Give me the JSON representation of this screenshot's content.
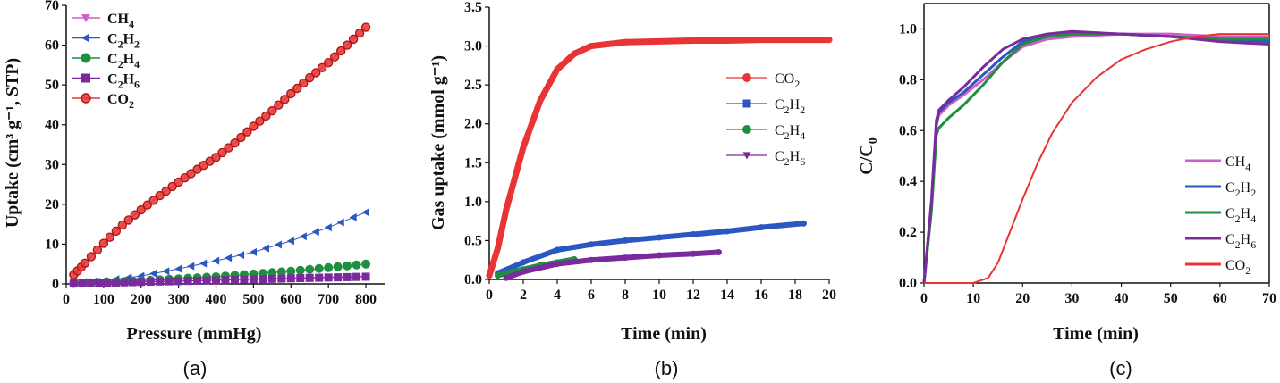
{
  "figure": {
    "colors": {
      "CH4": "#d15ec8",
      "C2H2": "#2b57c2",
      "C2H4": "#1f8f3f",
      "C2H6": "#7a2a9c",
      "CO2": "#e83434",
      "axis": "#111111"
    }
  },
  "chart_data": [
    {
      "panel_label": "(a)",
      "type": "scatter",
      "xlabel": "Pressure (mmHg)",
      "ylabel": "Uptake (cm³ g⁻¹, STP)",
      "xlim": [
        0,
        850
      ],
      "ylim": [
        0,
        70
      ],
      "xticks": [
        "0",
        "100",
        "200",
        "300",
        "400",
        "500",
        "600",
        "700",
        "800"
      ],
      "yticks": [
        "0",
        "10",
        "20",
        "30",
        "40",
        "50",
        "60",
        "70"
      ],
      "legend_placement": "top-left",
      "series": [
        {
          "name": "CH4",
          "label_parts": [
            "CH",
            "4",
            ""
          ],
          "marker": "triangle-down",
          "x": [
            20,
            200,
            400,
            600,
            800
          ],
          "y": [
            0.1,
            0.5,
            1.0,
            1.5,
            2.0
          ]
        },
        {
          "name": "C2H2",
          "label_parts": [
            "C",
            "2",
            "H",
            "2"
          ],
          "marker": "triangle-left",
          "x": [
            20,
            100,
            200,
            300,
            400,
            500,
            600,
            700,
            800
          ],
          "y": [
            0.3,
            0.8,
            2.0,
            3.8,
            5.8,
            8.0,
            10.8,
            14.2,
            18.0
          ]
        },
        {
          "name": "C2H4",
          "label_parts": [
            "C",
            "2",
            "H",
            "4"
          ],
          "marker": "circle",
          "x": [
            20,
            200,
            400,
            600,
            800
          ],
          "y": [
            0.1,
            0.8,
            1.8,
            3.2,
            5.0
          ]
        },
        {
          "name": "C2H6",
          "label_parts": [
            "C",
            "2",
            "H",
            "6"
          ],
          "marker": "square",
          "x": [
            20,
            200,
            400,
            600,
            800
          ],
          "y": [
            0.1,
            0.5,
            0.9,
            1.4,
            1.8
          ]
        },
        {
          "name": "CO2",
          "label_parts": [
            "CO",
            "2",
            ""
          ],
          "marker": "circle-open",
          "x": [
            20,
            50,
            100,
            150,
            200,
            250,
            300,
            350,
            400,
            450,
            500,
            550,
            600,
            650,
            700,
            750,
            800
          ],
          "y": [
            2.3,
            5.2,
            10.2,
            14.8,
            18.6,
            22.2,
            25.6,
            28.8,
            31.8,
            35.4,
            39.6,
            43.5,
            47.8,
            51.8,
            55.6,
            60.0,
            64.5
          ]
        }
      ]
    },
    {
      "panel_label": "(b)",
      "type": "scatter",
      "xlabel": "Time (min)",
      "ylabel": "Gas uptake (mmol g⁻¹)",
      "xlim": [
        0,
        20
      ],
      "ylim": [
        0,
        3.5
      ],
      "xticks": [
        "0",
        "2",
        "4",
        "6",
        "8",
        "10",
        "12",
        "14",
        "16",
        "18",
        "20"
      ],
      "yticks": [
        "0.0",
        "0.5",
        "1.0",
        "1.5",
        "2.0",
        "2.5",
        "3.0",
        "3.5"
      ],
      "legend_placement": "right",
      "series": [
        {
          "name": "CO2",
          "label_parts": [
            "CO",
            "2",
            ""
          ],
          "x": [
            0,
            0.5,
            1,
            2,
            3,
            4,
            5,
            6,
            8,
            10,
            12,
            14,
            16,
            18,
            20
          ],
          "y": [
            0.05,
            0.4,
            0.9,
            1.7,
            2.3,
            2.7,
            2.9,
            3.0,
            3.05,
            3.06,
            3.07,
            3.07,
            3.08,
            3.08,
            3.08
          ]
        },
        {
          "name": "C2H2",
          "label_parts": [
            "C",
            "2",
            "H",
            "2"
          ],
          "x": [
            0.5,
            2,
            4,
            6,
            8,
            10,
            12,
            14,
            16,
            18.5
          ],
          "y": [
            0.08,
            0.22,
            0.38,
            0.45,
            0.5,
            0.54,
            0.58,
            0.62,
            0.67,
            0.72
          ]
        },
        {
          "name": "C2H4",
          "label_parts": [
            "C",
            "2",
            "H",
            "4"
          ],
          "x": [
            0.5,
            1,
            2,
            3,
            4,
            5
          ],
          "y": [
            0.05,
            0.08,
            0.13,
            0.18,
            0.22,
            0.26
          ]
        },
        {
          "name": "C2H6",
          "label_parts": [
            "C",
            "2",
            "H",
            "6"
          ],
          "x": [
            1,
            2,
            4,
            6,
            8,
            10,
            12,
            13.5
          ],
          "y": [
            0.02,
            0.1,
            0.2,
            0.25,
            0.28,
            0.31,
            0.33,
            0.35
          ]
        }
      ]
    },
    {
      "panel_label": "(c)",
      "type": "line",
      "xlabel": "Time (min)",
      "ylabel": "C/C₀",
      "xlim": [
        0,
        70
      ],
      "ylim": [
        0,
        1.1
      ],
      "xticks": [
        "0",
        "10",
        "20",
        "30",
        "40",
        "50",
        "60",
        "70"
      ],
      "yticks": [
        "0.0",
        "0.2",
        "0.4",
        "0.6",
        "0.8",
        "1.0"
      ],
      "legend_placement": "bottom-right",
      "series": [
        {
          "name": "CH4",
          "label_parts": [
            "CH",
            "4",
            ""
          ],
          "x": [
            0,
            1.5,
            2.5,
            3,
            5,
            8,
            12,
            16,
            20,
            25,
            30,
            40,
            50,
            60,
            70
          ],
          "y": [
            0,
            0.3,
            0.62,
            0.66,
            0.7,
            0.74,
            0.8,
            0.87,
            0.93,
            0.96,
            0.97,
            0.98,
            0.98,
            0.97,
            0.97
          ]
        },
        {
          "name": "C2H2",
          "label_parts": [
            "C",
            "2",
            "H",
            "2"
          ],
          "x": [
            0,
            1.5,
            2.5,
            3,
            5,
            8,
            12,
            16,
            20,
            25,
            30,
            40,
            50,
            60,
            70
          ],
          "y": [
            0,
            0.3,
            0.62,
            0.67,
            0.71,
            0.75,
            0.82,
            0.89,
            0.95,
            0.97,
            0.98,
            0.98,
            0.97,
            0.96,
            0.95
          ]
        },
        {
          "name": "C2H4",
          "label_parts": [
            "C",
            "2",
            "H",
            "4"
          ],
          "x": [
            0,
            1.5,
            2.5,
            3,
            5,
            8,
            12,
            16,
            20,
            25,
            30,
            40,
            50,
            60,
            70
          ],
          "y": [
            0,
            0.28,
            0.58,
            0.61,
            0.65,
            0.7,
            0.78,
            0.87,
            0.94,
            0.97,
            0.98,
            0.98,
            0.97,
            0.96,
            0.96
          ]
        },
        {
          "name": "C2H6",
          "label_parts": [
            "C",
            "2",
            "H",
            "6"
          ],
          "x": [
            0,
            1.5,
            2.5,
            3,
            5,
            8,
            12,
            16,
            20,
            25,
            30,
            40,
            50,
            60,
            70
          ],
          "y": [
            0,
            0.32,
            0.64,
            0.68,
            0.72,
            0.77,
            0.85,
            0.92,
            0.96,
            0.98,
            0.99,
            0.98,
            0.97,
            0.95,
            0.94
          ]
        },
        {
          "name": "CO2",
          "label_parts": [
            "CO",
            "2",
            ""
          ],
          "x": [
            0,
            10,
            13,
            15,
            17,
            20,
            23,
            26,
            30,
            35,
            40,
            45,
            50,
            55,
            60,
            65,
            70
          ],
          "y": [
            0,
            0,
            0.02,
            0.08,
            0.18,
            0.33,
            0.47,
            0.59,
            0.71,
            0.81,
            0.88,
            0.92,
            0.95,
            0.97,
            0.98,
            0.98,
            0.98
          ]
        }
      ]
    }
  ]
}
